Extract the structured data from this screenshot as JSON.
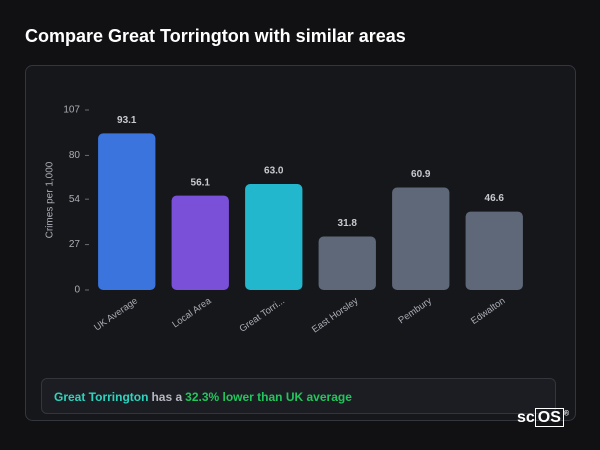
{
  "chart_data": {
    "type": "bar",
    "title": "Compare Great Torrington with similar areas",
    "y_label": "Crimes per 1,000",
    "categories": [
      "UK Average",
      "Local Area",
      "Great Torri...",
      "East Horsley",
      "Pembury",
      "Edwalton"
    ],
    "values": [
      93.1,
      56.1,
      63.0,
      31.8,
      60.9,
      46.6
    ],
    "value_labels": [
      "93.1",
      "56.1",
      "63.0",
      "31.8",
      "60.9",
      "46.6"
    ],
    "colors": [
      "#3a74dc",
      "#7b50d8",
      "#22b7cd",
      "#5f6879",
      "#5f6879",
      "#5f6879"
    ],
    "ylim": [
      0,
      107
    ],
    "yticks": [
      0,
      27,
      54,
      80,
      107
    ],
    "grid": false
  },
  "summary": {
    "area": "Great Torrington",
    "middle": "has a",
    "highlight": "32.3% lower than UK average"
  },
  "logo": {
    "left": "sc",
    "right": "OS",
    "mark": "®"
  }
}
